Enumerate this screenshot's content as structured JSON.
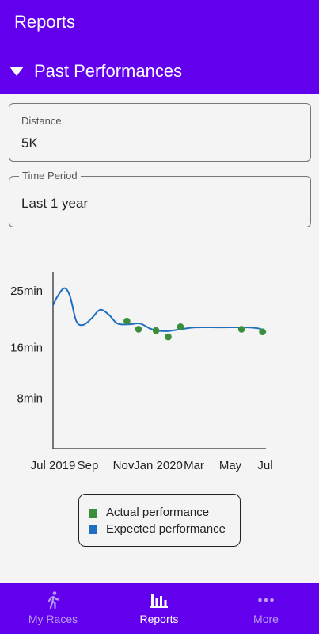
{
  "app": {
    "title": "Reports"
  },
  "section": {
    "title": "Past Performances",
    "expanded": true
  },
  "filters": {
    "distance": {
      "label": "Distance",
      "value": "5K"
    },
    "period": {
      "label": "Time Period",
      "value": "Last 1 year"
    }
  },
  "colors": {
    "primary": "#6200ee",
    "actual": "#3a8e3a",
    "expected": "#1f6fc1"
  },
  "chart_data": {
    "type": "line",
    "x_tick_labels": [
      "Jul 2019",
      "Sep",
      "Nov",
      "Jan 2020",
      "Mar",
      "May",
      "Jul"
    ],
    "y_tick_labels": [
      "25min",
      "16min",
      "8min"
    ],
    "y_ticks": [
      25,
      16,
      8
    ],
    "xlim": [
      "2019-07-01",
      "2020-07-01"
    ],
    "ylim": [
      0,
      28
    ],
    "grid": false,
    "legend_position": "bottom",
    "series": [
      {
        "name": "Actual performance",
        "kind": "scatter",
        "color": "#3a8e3a",
        "points": [
          {
            "x": "2019-11-05",
            "y": 20.2
          },
          {
            "x": "2019-11-25",
            "y": 18.9
          },
          {
            "x": "2019-12-25",
            "y": 18.7
          },
          {
            "x": "2020-01-15",
            "y": 17.7
          },
          {
            "x": "2020-02-05",
            "y": 19.3
          },
          {
            "x": "2020-05-20",
            "y": 18.9
          },
          {
            "x": "2020-06-25",
            "y": 18.5
          }
        ]
      },
      {
        "name": "Expected performance",
        "kind": "line",
        "color": "#1f6fc1",
        "points": [
          {
            "x": "2019-07-01",
            "y": 22.7
          },
          {
            "x": "2019-07-08",
            "y": 24.0
          },
          {
            "x": "2019-07-20",
            "y": 25.4
          },
          {
            "x": "2019-07-30",
            "y": 24.2
          },
          {
            "x": "2019-08-10",
            "y": 20.2
          },
          {
            "x": "2019-08-22",
            "y": 19.6
          },
          {
            "x": "2019-09-05",
            "y": 20.6
          },
          {
            "x": "2019-09-20",
            "y": 22.0
          },
          {
            "x": "2019-10-05",
            "y": 21.2
          },
          {
            "x": "2019-10-20",
            "y": 19.8
          },
          {
            "x": "2019-11-10",
            "y": 19.7
          },
          {
            "x": "2019-11-28",
            "y": 19.8
          },
          {
            "x": "2019-12-18",
            "y": 18.9
          },
          {
            "x": "2020-01-10",
            "y": 18.6
          },
          {
            "x": "2020-02-05",
            "y": 18.9
          },
          {
            "x": "2020-03-01",
            "y": 19.2
          },
          {
            "x": "2020-04-15",
            "y": 19.2
          },
          {
            "x": "2020-05-30",
            "y": 19.2
          },
          {
            "x": "2020-06-20",
            "y": 19.0
          },
          {
            "x": "2020-07-01",
            "y": 18.4
          }
        ]
      }
    ]
  },
  "legend": {
    "items": [
      "Actual performance",
      "Expected performance"
    ]
  },
  "bottom_nav": {
    "items": [
      {
        "label": "My Races",
        "icon": "runner-icon",
        "active": false
      },
      {
        "label": "Reports",
        "icon": "bar-chart-icon",
        "active": true
      },
      {
        "label": "More",
        "icon": "more-dots-icon",
        "active": false
      }
    ]
  }
}
